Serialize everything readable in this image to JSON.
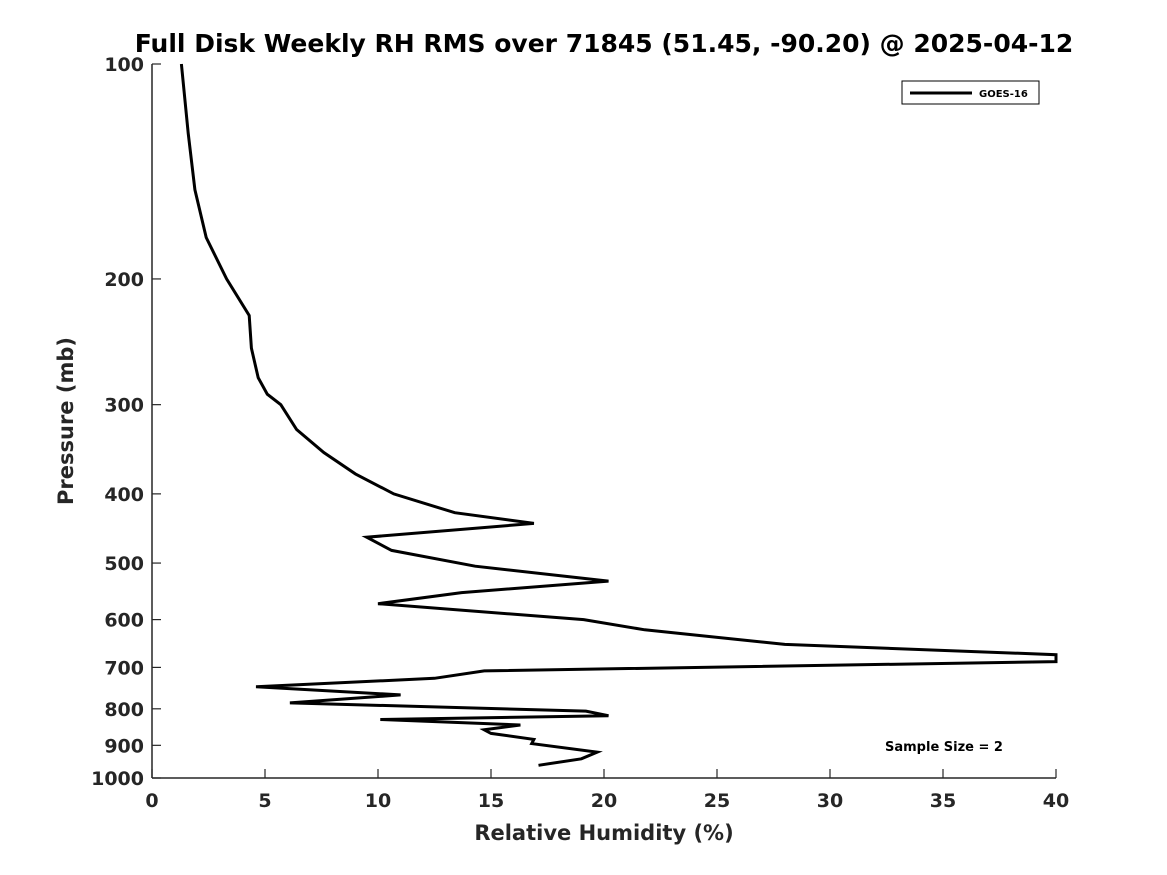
{
  "chart_data": {
    "type": "line",
    "title": "Full Disk Weekly RH RMS over 71845 (51.45, -90.20) @ 2025-04-12",
    "xlabel": "Relative Humidity (%)",
    "ylabel": "Pressure (mb)",
    "xlim": [
      0,
      40
    ],
    "ylim": [
      100,
      1000
    ],
    "y_scale": "log",
    "y_reversed": true,
    "grid": false,
    "legend_position": "top-right",
    "xticks": [
      "0",
      "5",
      "10",
      "15",
      "20",
      "25",
      "30",
      "35",
      "40"
    ],
    "yticks": [
      "100",
      "200",
      "300",
      "400",
      "500",
      "600",
      "700",
      "800",
      "900",
      "1000"
    ],
    "annotation": "Sample Size = 2",
    "series": [
      {
        "name": "GOES-16",
        "color": "#000000",
        "points": [
          [
            1.3,
            100
          ],
          [
            1.6,
            125
          ],
          [
            1.9,
            150
          ],
          [
            2.4,
            175
          ],
          [
            3.3,
            200
          ],
          [
            4.3,
            225
          ],
          [
            4.4,
            250
          ],
          [
            4.7,
            275
          ],
          [
            5.1,
            290
          ],
          [
            5.7,
            300
          ],
          [
            6.4,
            325
          ],
          [
            7.6,
            350
          ],
          [
            9.0,
            375
          ],
          [
            10.7,
            400
          ],
          [
            13.4,
            425
          ],
          [
            16.9,
            440
          ],
          [
            9.5,
            460
          ],
          [
            10.6,
            480
          ],
          [
            14.3,
            505
          ],
          [
            20.2,
            530
          ],
          [
            13.7,
            550
          ],
          [
            10.0,
            570
          ],
          [
            19.1,
            600
          ],
          [
            21.8,
            620
          ],
          [
            28.0,
            650
          ],
          [
            40.0,
            672
          ],
          [
            40.0,
            687
          ],
          [
            14.7,
            708
          ],
          [
            12.5,
            725
          ],
          [
            4.6,
            745
          ],
          [
            11.0,
            765
          ],
          [
            6.1,
            785
          ],
          [
            19.2,
            806
          ],
          [
            20.2,
            818
          ],
          [
            10.1,
            828
          ],
          [
            16.3,
            843
          ],
          [
            14.7,
            856
          ],
          [
            15.0,
            866
          ],
          [
            16.9,
            883
          ],
          [
            16.8,
            895
          ],
          [
            19.7,
            920
          ],
          [
            19.0,
            940
          ],
          [
            17.1,
            960
          ]
        ]
      }
    ]
  }
}
